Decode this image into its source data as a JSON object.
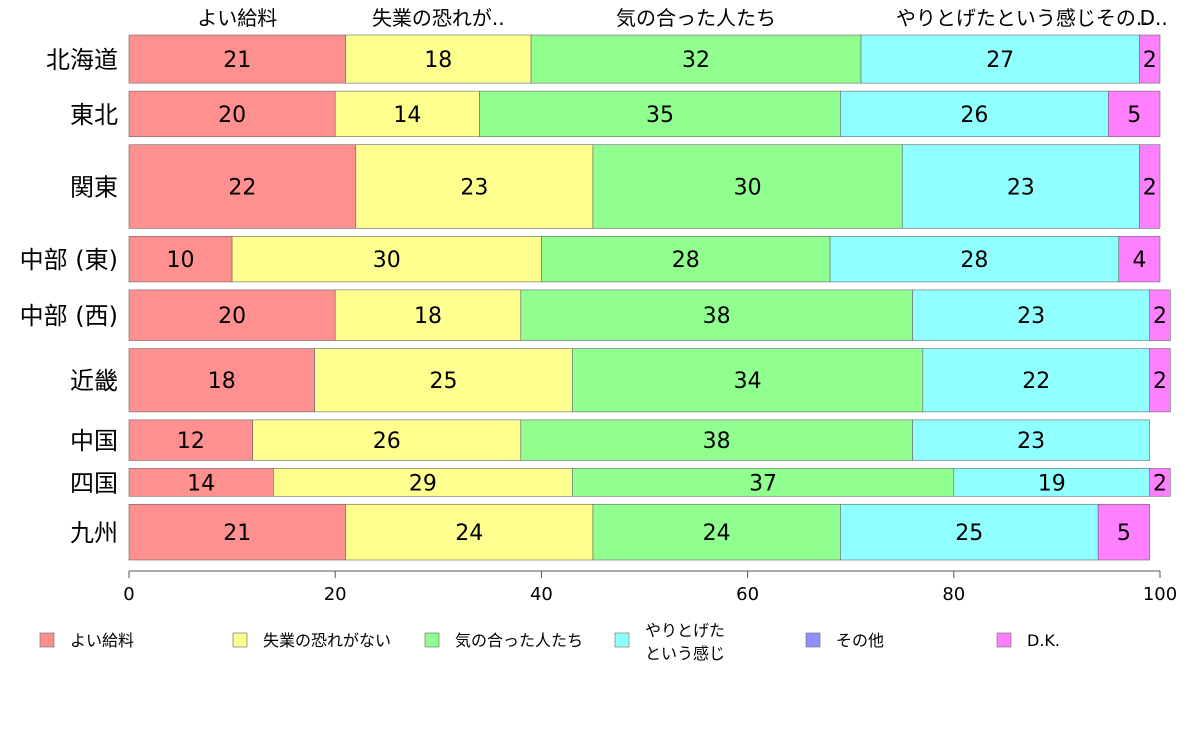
{
  "chart_data": {
    "type": "bar",
    "orientation": "horizontal",
    "stacked": true,
    "categories": [
      "北海道",
      "東北",
      "関東",
      "中部 (東)",
      "中部 (西)",
      "近畿",
      "中国",
      "四国",
      "九州"
    ],
    "category_weights": [
      0.95,
      0.9,
      1.65,
      0.9,
      1.0,
      1.25,
      0.8,
      0.55,
      1.1
    ],
    "series": [
      {
        "name": "よい給料",
        "color": "#FF9090",
        "values": [
          21,
          20,
          22,
          10,
          20,
          18,
          12,
          14,
          21
        ]
      },
      {
        "name": "失業の恐れがない",
        "color": "#FFFF90",
        "values": [
          18,
          14,
          23,
          30,
          18,
          25,
          26,
          29,
          24
        ]
      },
      {
        "name": "気の合った人たち",
        "color": "#90FF90",
        "values": [
          32,
          35,
          30,
          28,
          38,
          34,
          38,
          37,
          24
        ]
      },
      {
        "name": "やりとげたという感じ",
        "color": "#90FFFF",
        "values": [
          27,
          26,
          23,
          28,
          23,
          22,
          23,
          19,
          25
        ]
      },
      {
        "name": "その他",
        "color": "#9090FF",
        "values": [
          0,
          0,
          0,
          0,
          0,
          0,
          0,
          0,
          0
        ]
      },
      {
        "name": "D.K.",
        "color": "#FF80FF",
        "values": [
          2,
          5,
          2,
          4,
          2,
          2,
          0,
          2,
          5
        ]
      }
    ],
    "top_labels": [
      "よい給料",
      "失業の恐れが..",
      "気の合った人たち",
      "やりとげたという感じその..",
      "D.."
    ],
    "xlim": [
      0,
      100
    ],
    "xticks": [
      "0",
      "20",
      "40",
      "60",
      "80",
      "100"
    ],
    "legend": [
      {
        "lines": [
          "よい給料"
        ],
        "color": "#FF9090"
      },
      {
        "lines": [
          "失業の恐れがない"
        ],
        "color": "#FFFF90"
      },
      {
        "lines": [
          "気の合った人たち"
        ],
        "color": "#90FF90"
      },
      {
        "lines": [
          "やりとげた",
          "という感じ"
        ],
        "color": "#90FFFF"
      },
      {
        "lines": [
          "その他"
        ],
        "color": "#9090FF"
      },
      {
        "lines": [
          "D.K."
        ],
        "color": "#FF80FF"
      }
    ],
    "legend_position": "bottom",
    "grid": false
  }
}
